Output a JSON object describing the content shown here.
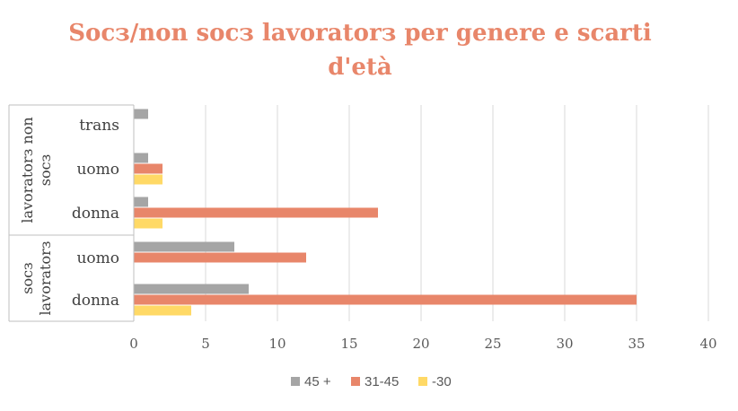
{
  "chart_data": {
    "type": "bar",
    "orientation": "horizontal",
    "title_lines": [
      "Socз/non socз lavoratorз per genere e scarti",
      "d'età"
    ],
    "groups": [
      {
        "label_lines": [
          "lavoratorз non",
          "socз"
        ],
        "categories": [
          "trans",
          "uomo",
          "donna"
        ]
      },
      {
        "label_lines": [
          "socз",
          "lavoratorз"
        ],
        "categories": [
          "uomo",
          "donna"
        ]
      }
    ],
    "rows": [
      {
        "category": "trans",
        "group": 0,
        "values": [
          1,
          0,
          0
        ]
      },
      {
        "category": "uomo",
        "group": 0,
        "values": [
          1,
          2,
          2
        ]
      },
      {
        "category": "donna",
        "group": 0,
        "values": [
          1,
          17,
          2
        ]
      },
      {
        "category": "uomo",
        "group": 1,
        "values": [
          7,
          12,
          0
        ]
      },
      {
        "category": "donna",
        "group": 1,
        "values": [
          8,
          35,
          4
        ]
      }
    ],
    "series": [
      {
        "name": "45 +",
        "color": "#A5A5A5"
      },
      {
        "name": "31-45",
        "color": "#E8866A"
      },
      {
        "name": "-30",
        "color": "#FFD966"
      }
    ],
    "xlim": [
      0,
      40
    ],
    "xticks": [
      "0",
      "5",
      "10",
      "15",
      "20",
      "25",
      "30",
      "35",
      "40"
    ],
    "grid": true,
    "legend_position": "bottom"
  }
}
